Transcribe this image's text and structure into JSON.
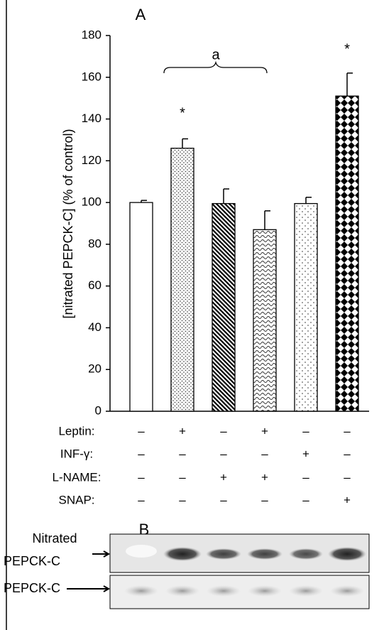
{
  "chart_data": {
    "type": "bar",
    "panel_labels": [
      "A",
      "B"
    ],
    "ylabel": "[nitrated PEPCK-C] (% of control)",
    "ylim": [
      0,
      180
    ],
    "yticks": [
      0,
      20,
      40,
      60,
      80,
      100,
      120,
      140,
      160,
      180
    ],
    "values": [
      100,
      126,
      99.5,
      87,
      99.5,
      151
    ],
    "errors": [
      1,
      4.5,
      7,
      9,
      3,
      11
    ],
    "annotations": [
      "*",
      "*",
      "a"
    ],
    "treatments": [
      {
        "name": "Leptin:",
        "values": [
          "–",
          "+",
          "–",
          "+",
          "–",
          "–"
        ]
      },
      {
        "name": "INF-γ:",
        "values": [
          "–",
          "–",
          "–",
          "–",
          "+",
          "–"
        ]
      },
      {
        "name": "L-NAME:",
        "values": [
          "–",
          "–",
          "+",
          "+",
          "–",
          "–"
        ]
      },
      {
        "name": "SNAP:",
        "values": [
          "–",
          "–",
          "–",
          "–",
          "–",
          "+"
        ]
      }
    ],
    "blot_labels": [
      "Nitrated",
      "PEPCK-C",
      "PEPCK-C"
    ]
  }
}
